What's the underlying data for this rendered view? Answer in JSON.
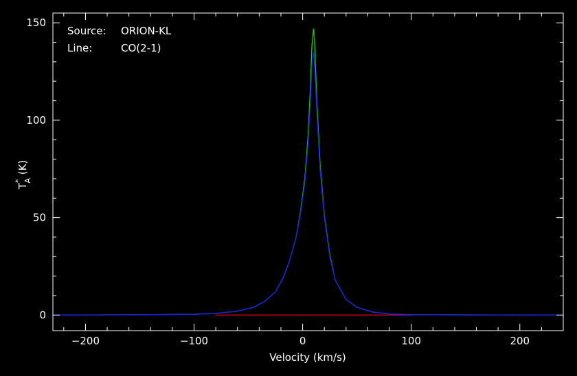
{
  "chart_data": {
    "type": "line",
    "xlabel": "Velocity (km/s)",
    "ylabel": {
      "main": "T",
      "sup": "*",
      "sub": "A",
      "unit": " (K)"
    },
    "xlim": [
      -230,
      240
    ],
    "ylim": [
      -8,
      155
    ],
    "xticks": [
      -200,
      -100,
      0,
      100,
      200
    ],
    "xtick_labels": [
      "−200",
      "−100",
      "0",
      "100",
      "200"
    ],
    "yticks": [
      0,
      50,
      100,
      150
    ],
    "ytick_labels": [
      "0",
      "50",
      "100",
      "150"
    ],
    "grid": false,
    "annotations": [
      {
        "key": "Source:",
        "value": "ORION-KL"
      },
      {
        "key": "Line:",
        "value": "CO(2-1)"
      }
    ],
    "colors": {
      "background": "#000000",
      "axes": "#ffffff",
      "green": "#00e000",
      "blue": "#1a1aff",
      "red": "#e00000"
    },
    "series": [
      {
        "color": "#1a1aff",
        "x": [
          -230,
          -150,
          -100,
          -80,
          -60,
          -45,
          -35,
          -25,
          -18,
          -12,
          -6,
          -2,
          2,
          5,
          7,
          8.5,
          10,
          11,
          13,
          16,
          20,
          25,
          30,
          40,
          50,
          65,
          80,
          100,
          150,
          240
        ],
        "y": [
          0,
          0.2,
          0.4,
          0.8,
          2,
          4,
          7,
          12,
          19,
          28,
          40,
          52,
          68,
          88,
          108,
          128,
          135,
          128,
          105,
          75,
          50,
          30,
          18,
          8,
          4,
          1.5,
          0.5,
          0.2,
          0.1,
          0
        ]
      },
      {
        "color": "#00e000",
        "x": [
          -230,
          -150,
          -100,
          -80,
          -60,
          -45,
          -35,
          -25,
          -18,
          -12,
          -6,
          -2,
          2,
          5,
          7,
          8.5,
          10,
          11,
          13,
          16,
          20,
          25,
          30,
          40,
          50,
          65,
          80,
          100,
          150,
          240
        ],
        "y": [
          0,
          0.2,
          0.4,
          0.8,
          2,
          4,
          7,
          12,
          19,
          28,
          40,
          53,
          70,
          92,
          115,
          138,
          147,
          140,
          110,
          78,
          51,
          31,
          18,
          8,
          4,
          1.5,
          0.5,
          0.2,
          0.1,
          0
        ]
      },
      {
        "color": "#e00000",
        "x": [
          -80,
          100
        ],
        "y": [
          0,
          0
        ]
      }
    ]
  }
}
